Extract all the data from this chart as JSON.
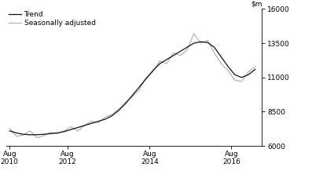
{
  "ylim": [
    6000,
    16000
  ],
  "yticks": [
    6000,
    8500,
    11000,
    13500,
    16000
  ],
  "xtick_positions": [
    2010.583,
    2012.0,
    2014.0,
    2016.0
  ],
  "xtick_labels": [
    "Aug\n2010",
    "Aug\n2012",
    "Aug\n2014",
    "Aug\n2016"
  ],
  "xlim": [
    2010.5,
    2016.75
  ],
  "legend_trend": "Trend",
  "legend_seasonal": "Seasonally adjusted",
  "trend_color": "#111111",
  "seasonal_color": "#aaaaaa",
  "trend_linewidth": 0.9,
  "seasonal_linewidth": 0.8,
  "background_color": "#ffffff",
  "trend": {
    "x": [
      2010.583,
      2010.75,
      2010.917,
      2011.083,
      2011.25,
      2011.417,
      2011.583,
      2011.75,
      2011.917,
      2012.083,
      2012.25,
      2012.417,
      2012.583,
      2012.75,
      2012.917,
      2013.083,
      2013.25,
      2013.417,
      2013.583,
      2013.75,
      2013.917,
      2014.083,
      2014.25,
      2014.417,
      2014.583,
      2014.75,
      2014.917,
      2015.083,
      2015.25,
      2015.417,
      2015.583,
      2015.75,
      2015.917,
      2016.083,
      2016.25,
      2016.417,
      2016.583
    ],
    "y": [
      7100,
      6950,
      6850,
      6820,
      6820,
      6850,
      6900,
      6950,
      7050,
      7200,
      7350,
      7500,
      7650,
      7800,
      7950,
      8200,
      8600,
      9100,
      9700,
      10300,
      10900,
      11500,
      12000,
      12300,
      12600,
      12900,
      13200,
      13500,
      13600,
      13550,
      13200,
      12500,
      11800,
      11200,
      11000,
      11200,
      11600
    ]
  },
  "seasonal": {
    "x": [
      2010.583,
      2010.75,
      2010.917,
      2011.083,
      2011.25,
      2011.417,
      2011.583,
      2011.75,
      2011.917,
      2012.083,
      2012.25,
      2012.417,
      2012.583,
      2012.75,
      2012.917,
      2013.083,
      2013.25,
      2013.417,
      2013.583,
      2013.75,
      2013.917,
      2014.083,
      2014.25,
      2014.417,
      2014.583,
      2014.75,
      2014.917,
      2015.083,
      2015.25,
      2015.417,
      2015.583,
      2015.75,
      2015.917,
      2016.083,
      2016.25,
      2016.417,
      2016.583
    ],
    "y": [
      7300,
      6700,
      6800,
      7100,
      6600,
      6750,
      7000,
      6900,
      7100,
      7400,
      7100,
      7500,
      7800,
      7700,
      8100,
      8300,
      8700,
      9200,
      9600,
      10100,
      11000,
      11400,
      12200,
      12000,
      12800,
      12600,
      13000,
      14200,
      13500,
      13700,
      12800,
      12000,
      11500,
      10800,
      10700,
      11400,
      11800
    ]
  }
}
